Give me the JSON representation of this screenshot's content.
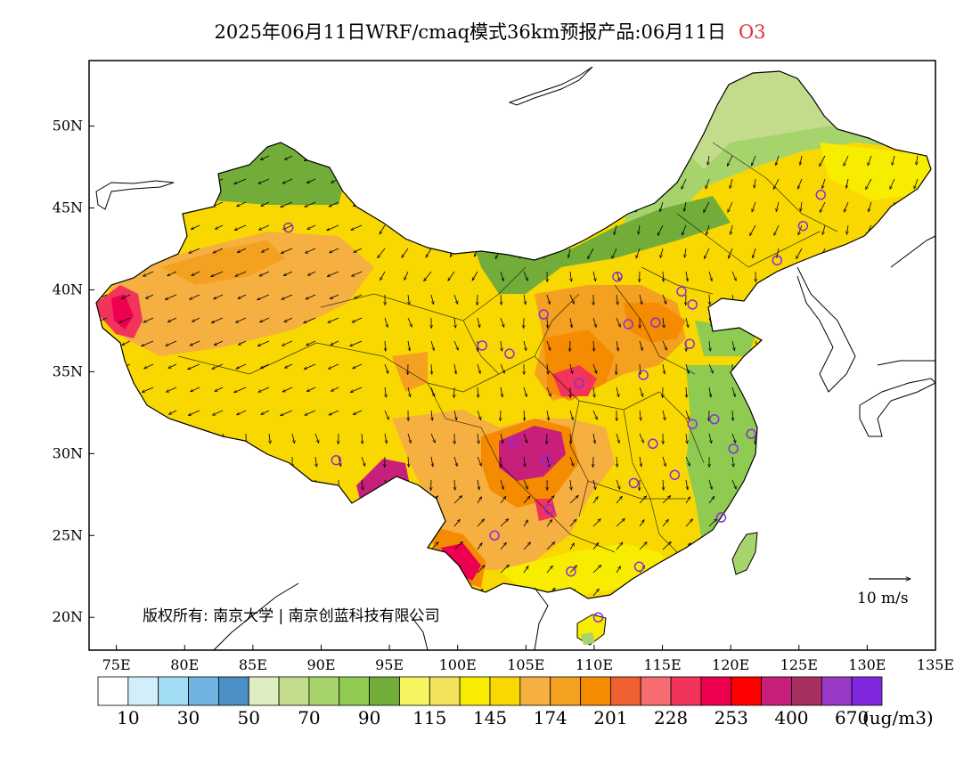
{
  "title": {
    "text": "2025年06月11日WRF/cmaq模式36km预报产品:06月11日",
    "species": "O3"
  },
  "axes": {
    "x_ticks": [
      "75E",
      "80E",
      "85E",
      "90E",
      "95E",
      "100E",
      "105E",
      "110E",
      "115E",
      "120E",
      "125E",
      "130E",
      "135E"
    ],
    "y_ticks": [
      "50N",
      "45N",
      "40N",
      "35N",
      "30N",
      "25N",
      "20N"
    ]
  },
  "wind_scale": {
    "label": "10 m/s"
  },
  "copyright": {
    "text": "版权所有: 南京大学 | 南京创蓝科技有限公司"
  },
  "legend": {
    "colors": [
      "#ffffff",
      "#d3eefb",
      "#a3dcf5",
      "#6fb4e0",
      "#4a8fc5",
      "#dfeec2",
      "#c2dc8c",
      "#a6d36c",
      "#8fcb50",
      "#72ad3a",
      "#f5f560",
      "#f2e35a",
      "#f8ec00",
      "#f8d800",
      "#f5b041",
      "#f4a020",
      "#f58b00",
      "#ee6030",
      "#f76c70",
      "#f2345c",
      "#ee0050",
      "#ff0000",
      "#c8207a",
      "#a83060",
      "#9a38c8",
      "#8028e0"
    ],
    "labels": [
      "10",
      "30",
      "50",
      "70",
      "90",
      "115",
      "145",
      "174",
      "201",
      "228",
      "253",
      "400",
      "670"
    ],
    "unit": "(ug/m3)"
  },
  "stations": [
    {
      "lon": 87.6,
      "lat": 43.8
    },
    {
      "lon": 91.1,
      "lat": 29.6
    },
    {
      "lon": 101.8,
      "lat": 36.6
    },
    {
      "lon": 103.8,
      "lat": 36.1
    },
    {
      "lon": 106.3,
      "lat": 38.5
    },
    {
      "lon": 111.7,
      "lat": 40.8
    },
    {
      "lon": 116.4,
      "lat": 39.9
    },
    {
      "lon": 117.2,
      "lat": 39.1
    },
    {
      "lon": 114.5,
      "lat": 38.0
    },
    {
      "lon": 112.5,
      "lat": 37.9
    },
    {
      "lon": 117.0,
      "lat": 36.7
    },
    {
      "lon": 113.6,
      "lat": 34.8
    },
    {
      "lon": 108.9,
      "lat": 34.3
    },
    {
      "lon": 104.1,
      "lat": 30.7
    },
    {
      "lon": 106.5,
      "lat": 29.6
    },
    {
      "lon": 106.7,
      "lat": 26.6
    },
    {
      "lon": 102.7,
      "lat": 25.0
    },
    {
      "lon": 108.3,
      "lat": 22.8
    },
    {
      "lon": 113.3,
      "lat": 23.1
    },
    {
      "lon": 110.3,
      "lat": 20.0
    },
    {
      "lon": 119.3,
      "lat": 26.1
    },
    {
      "lon": 115.9,
      "lat": 28.7
    },
    {
      "lon": 112.9,
      "lat": 28.2
    },
    {
      "lon": 114.3,
      "lat": 30.6
    },
    {
      "lon": 117.2,
      "lat": 31.8
    },
    {
      "lon": 118.8,
      "lat": 32.1
    },
    {
      "lon": 120.2,
      "lat": 30.3
    },
    {
      "lon": 121.5,
      "lat": 31.2
    },
    {
      "lon": 123.4,
      "lat": 41.8
    },
    {
      "lon": 125.3,
      "lat": 43.9
    },
    {
      "lon": 126.6,
      "lat": 45.8
    }
  ]
}
